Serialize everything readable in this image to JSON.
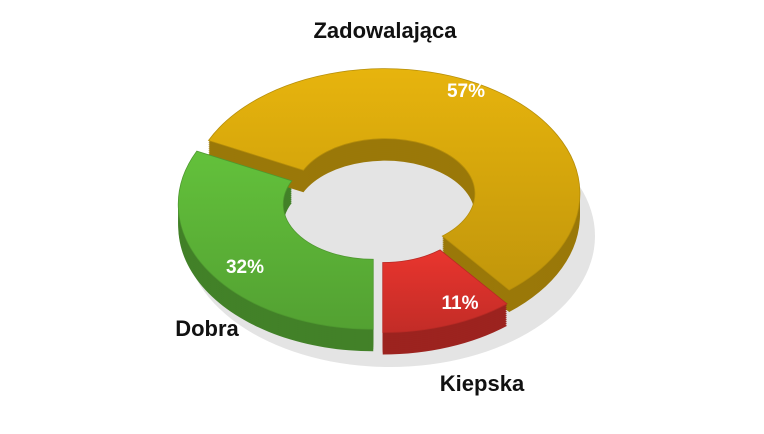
{
  "chart_data": {
    "type": "donut",
    "categories": [
      "Dobra",
      "Zadowalająca",
      "Kiepska"
    ],
    "values": [
      32,
      57,
      11
    ],
    "value_labels": [
      "32%",
      "57%",
      "11%"
    ],
    "colors": [
      "#5cb337",
      "#d6a70c",
      "#d8312b"
    ]
  }
}
